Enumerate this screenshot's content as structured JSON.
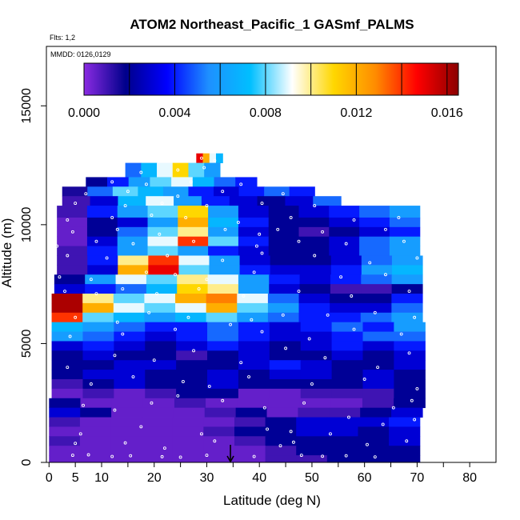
{
  "chart_data": {
    "type": "heatmap",
    "title": "ATOM2 Northeast_Pacific_1 GASmf_PALMS",
    "flights_note": "Flts: 1,2",
    "dates_note": "MMDD: 0126,0129",
    "xlabel": "Latitude (deg N)",
    "ylabel": "Altitude (m)",
    "xlim": [
      -0.5,
      85
    ],
    "ylim": [
      0,
      17500
    ],
    "x_ticks": [
      0,
      5,
      10,
      20,
      30,
      40,
      50,
      60,
      70,
      80
    ],
    "x_tick_labels": [
      "0",
      "5",
      "10",
      "20",
      "30",
      "40",
      "50",
      "60",
      "70",
      "80"
    ],
    "x_minor_ticks": [
      0,
      5,
      10,
      15,
      20,
      25,
      30,
      35,
      40,
      45,
      50,
      55,
      60,
      65,
      70,
      75,
      80
    ],
    "y_ticks": [
      0,
      5000,
      10000,
      15000
    ],
    "y_tick_labels": [
      "0",
      "5000",
      "10000",
      "15000"
    ],
    "colorbar": {
      "range": [
        0,
        0.0165
      ],
      "tick_values": [
        0,
        0.004,
        0.008,
        0.012,
        0.016
      ],
      "tick_labels": [
        "0.000",
        "0.004",
        "0.008",
        "0.012",
        "0.016"
      ],
      "divider_values": [
        0.002,
        0.004,
        0.006,
        0.008,
        0.01,
        0.012,
        0.014,
        0.016
      ],
      "colors": [
        "#8a2be2",
        "#00008b",
        "#0000ff",
        "#1e90ff",
        "#00bfff",
        "#ffffff",
        "#ffd700",
        "#ff8c00",
        "#ff0000",
        "#8b0000"
      ]
    },
    "arrow_marker_latitude": 34.5,
    "layers": [
      {
        "alt": [
          12600,
          13000
        ],
        "lat": [
          28,
          33
        ],
        "values": [
          0.015,
          0.012,
          0.009,
          0.007
        ]
      },
      {
        "alt": [
          12000,
          12600
        ],
        "lat": [
          14.5,
          32.5
        ],
        "values": [
          0.005,
          0.007,
          0.009,
          0.011,
          0.008,
          0.006
        ]
      },
      {
        "alt": [
          11600,
          12000
        ],
        "lat": [
          7,
          39.5
        ],
        "values": [
          0.002,
          0.004,
          0.006,
          0.008,
          0.009,
          0.007,
          0.005,
          0.004
        ]
      },
      {
        "alt": [
          11200,
          11600
        ],
        "lat": [
          2.5,
          50.5
        ],
        "values": [
          0.0015,
          0.005,
          0.008,
          0.007,
          0.006,
          0.004,
          0.003,
          0.004,
          0.005,
          0.004
        ]
      },
      {
        "alt": [
          10800,
          11200
        ],
        "lat": [
          2.5,
          55.5
        ],
        "values": [
          0.001,
          0.003,
          0.007,
          0.009,
          0.006,
          0.004,
          0.003,
          0.002,
          0.003,
          0.005
        ]
      },
      {
        "alt": [
          10300,
          10800
        ],
        "lat": [
          1.5,
          70.5
        ],
        "values": [
          0.001,
          0.004,
          0.006,
          0.008,
          0.011,
          0.006,
          0.003,
          0.002,
          0.003,
          0.004,
          0.005,
          0.006
        ]
      },
      {
        "alt": [
          9900,
          10300
        ],
        "lat": [
          1.5,
          70.5
        ],
        "values": [
          0.0005,
          0.002,
          0.003,
          0.006,
          0.012,
          0.007,
          0.004,
          0.002,
          0.002,
          0.003,
          0.004,
          0.005
        ]
      },
      {
        "alt": [
          9500,
          9900
        ],
        "lat": [
          1.5,
          70.5
        ],
        "values": [
          0.0005,
          0.002,
          0.005,
          0.008,
          0.01,
          0.006,
          0.003,
          0.002,
          0.001,
          0.002,
          0.003,
          0.004
        ]
      },
      {
        "alt": [
          9100,
          9500
        ],
        "lat": [
          1.5,
          70.5
        ],
        "values": [
          0.0005,
          0.003,
          0.006,
          0.009,
          0.014,
          0.008,
          0.004,
          0.002,
          0.002,
          0.003,
          0.005,
          0.006
        ]
      },
      {
        "alt": [
          8700,
          9100
        ],
        "lat": [
          1.5,
          70.5
        ],
        "values": [
          0.001,
          0.004,
          0.006,
          0.008,
          0.006,
          0.004,
          0.003,
          0.002,
          0.002,
          0.003,
          0.005,
          0.006
        ]
      },
      {
        "alt": [
          8300,
          8700
        ],
        "lat": [
          1.5,
          71
        ],
        "values": [
          0.001,
          0.004,
          0.01,
          0.014,
          0.009,
          0.006,
          0.003,
          0.002,
          0.002,
          0.003,
          0.005,
          0.006
        ]
      },
      {
        "alt": [
          7900,
          8300
        ],
        "lat": [
          1.5,
          71
        ],
        "values": [
          0.001,
          0.003,
          0.012,
          0.015,
          0.008,
          0.006,
          0.004,
          0.003,
          0.003,
          0.004,
          0.006,
          0.007
        ]
      },
      {
        "alt": [
          7500,
          7900
        ],
        "lat": [
          1,
          71
        ],
        "values": [
          0.002,
          0.006,
          0.009,
          0.008,
          0.01,
          0.009,
          0.006,
          0.004,
          0.003,
          0.004,
          0.005,
          0.006
        ]
      },
      {
        "alt": [
          7100,
          7500
        ],
        "lat": [
          1,
          71
        ],
        "values": [
          0.003,
          0.004,
          0.005,
          0.007,
          0.011,
          0.01,
          0.006,
          0.003,
          0.002,
          0.001,
          0.001,
          0.002
        ]
      },
      {
        "alt": [
          6700,
          7100
        ],
        "lat": [
          0.5,
          71
        ],
        "values": [
          0.016,
          0.01,
          0.008,
          0.009,
          0.012,
          0.013,
          0.009,
          0.005,
          0.003,
          0.002,
          0.002,
          0.004
        ]
      },
      {
        "alt": [
          6300,
          6700
        ],
        "lat": [
          0.5,
          71
        ],
        "values": [
          0.016,
          0.012,
          0.009,
          0.008,
          0.009,
          0.012,
          0.008,
          0.006,
          0.004,
          0.003,
          0.003,
          0.005
        ]
      },
      {
        "alt": [
          5900,
          6300
        ],
        "lat": [
          0.5,
          71
        ],
        "values": [
          0.014,
          0.008,
          0.007,
          0.006,
          0.007,
          0.008,
          0.006,
          0.005,
          0.004,
          0.004,
          0.005,
          0.006
        ]
      },
      {
        "alt": [
          5500,
          5900
        ],
        "lat": [
          0.5,
          71.5
        ],
        "values": [
          0.007,
          0.006,
          0.005,
          0.004,
          0.004,
          0.005,
          0.004,
          0.003,
          0.004,
          0.005,
          0.004,
          0.006
        ]
      },
      {
        "alt": [
          5100,
          5500
        ],
        "lat": [
          0.5,
          71.5
        ],
        "values": [
          0.006,
          0.005,
          0.004,
          0.003,
          0.004,
          0.005,
          0.004,
          0.003,
          0.003,
          0.004,
          0.005,
          0.005
        ]
      },
      {
        "alt": [
          4700,
          5100
        ],
        "lat": [
          0.5,
          71.5
        ],
        "values": [
          0.003,
          0.004,
          0.003,
          0.002,
          0.003,
          0.004,
          0.003,
          0.002,
          0.003,
          0.004,
          0.003,
          0.004
        ]
      },
      {
        "alt": [
          4300,
          4700
        ],
        "lat": [
          0.5,
          71.5
        ],
        "values": [
          0.002,
          0.003,
          0.002,
          0.002,
          0.001,
          0.002,
          0.003,
          0.002,
          0.002,
          0.003,
          0.002,
          0.003
        ]
      },
      {
        "alt": [
          3900,
          4300
        ],
        "lat": [
          0.5,
          71.5
        ],
        "values": [
          0.002,
          0.002,
          0.003,
          0.003,
          0.002,
          0.002,
          0.003,
          0.004,
          0.003,
          0.002,
          0.002,
          0.003
        ]
      },
      {
        "alt": [
          3500,
          3900
        ],
        "lat": [
          0.5,
          71.5
        ],
        "values": [
          0.002,
          0.003,
          0.003,
          0.002,
          0.002,
          0.003,
          0.002,
          0.003,
          0.003,
          0.002,
          0.003,
          0.002
        ]
      },
      {
        "alt": [
          3100,
          3500
        ],
        "lat": [
          0.5,
          71.5
        ],
        "values": [
          0.001,
          0.002,
          0.003,
          0.002,
          0.002,
          0.003,
          0.002,
          0.002,
          0.002,
          0.002,
          0.003,
          0.002
        ]
      },
      {
        "alt": [
          2700,
          3100
        ],
        "lat": [
          0.5,
          71.5
        ],
        "values": [
          0.0005,
          0.001,
          0.0005,
          0.001,
          0.002,
          0.002,
          0.0005,
          0.0005,
          0.001,
          0.001,
          0.001,
          0.002
        ]
      },
      {
        "alt": [
          2300,
          2700
        ],
        "lat": [
          0,
          71.5
        ],
        "values": [
          0.002,
          0.0005,
          0.0005,
          0.0005,
          0.001,
          0.0005,
          0.0005,
          0.0005,
          0.0005,
          0.0005,
          0.001,
          0.002
        ]
      },
      {
        "alt": [
          1900,
          2300
        ],
        "lat": [
          0,
          71
        ],
        "values": [
          0.003,
          0.002,
          0.0005,
          0.0005,
          0.0005,
          0.001,
          0.002,
          0.0005,
          0.001,
          0.001,
          0.002,
          0.003
        ]
      },
      {
        "alt": [
          1500,
          1900
        ],
        "lat": [
          0,
          70.5
        ],
        "values": [
          0.001,
          0.0005,
          0.0005,
          0.0005,
          0.0005,
          0.0005,
          0.001,
          0.002,
          0.003,
          0.003,
          0.003,
          0.004
        ]
      },
      {
        "alt": [
          1100,
          1500
        ],
        "lat": [
          0,
          70.5
        ],
        "values": [
          0.0005,
          0.0005,
          0.0005,
          0.0005,
          0.0005,
          0.001,
          0.002,
          0.002,
          0.003,
          0.003,
          0.002,
          0.003
        ]
      },
      {
        "alt": [
          700,
          1100
        ],
        "lat": [
          0,
          70.5
        ],
        "values": [
          0.001,
          0.0005,
          0.0005,
          0.0005,
          0.0005,
          0.0005,
          0.001,
          0.002,
          0.002,
          0.002,
          0.002,
          0.003
        ]
      },
      {
        "alt": [
          300,
          700
        ],
        "lat": [
          0,
          70.5
        ],
        "values": [
          0.0005,
          0.0005,
          0.0005,
          0.0005,
          0.0005,
          0.0005,
          0.0005,
          0.001,
          0.002,
          0.002,
          0.002,
          0.002
        ]
      },
      {
        "alt": [
          0,
          300
        ],
        "lat": [
          0,
          70.5
        ],
        "values": [
          0.0005,
          0.0005,
          0.0005,
          0.0005,
          0.0005,
          0.0005,
          0.0005,
          0.001,
          0.001,
          0.002,
          0.002,
          0.002
        ]
      }
    ],
    "sample_points": [
      [
        4.5,
        300
      ],
      [
        7.5,
        320
      ],
      [
        12,
        250
      ],
      [
        15.5,
        280
      ],
      [
        21.5,
        240
      ],
      [
        25,
        220
      ],
      [
        30,
        300
      ],
      [
        39,
        250
      ],
      [
        48,
        300
      ],
      [
        52,
        260
      ],
      [
        56.5,
        280
      ],
      [
        62,
        230
      ],
      [
        5,
        800
      ],
      [
        14.5,
        820
      ],
      [
        22,
        600
      ],
      [
        31.5,
        900
      ],
      [
        44,
        700
      ],
      [
        46.5,
        850
      ],
      [
        60.5,
        750
      ],
      [
        68,
        900
      ],
      [
        6,
        1200
      ],
      [
        17.5,
        1500
      ],
      [
        29,
        1200
      ],
      [
        41.5,
        1400
      ],
      [
        46,
        1300
      ],
      [
        53.5,
        1200
      ],
      [
        63.5,
        1600
      ],
      [
        69.5,
        1800
      ],
      [
        6.5,
        2400
      ],
      [
        12.5,
        2200
      ],
      [
        19.5,
        2500
      ],
      [
        24.5,
        2800
      ],
      [
        33,
        2600
      ],
      [
        41,
        2300
      ],
      [
        48.5,
        2500
      ],
      [
        57,
        1900
      ],
      [
        65.5,
        2300
      ],
      [
        69,
        2600
      ],
      [
        8,
        3300
      ],
      [
        16,
        3600
      ],
      [
        25.5,
        3400
      ],
      [
        30.5,
        3200
      ],
      [
        38,
        3600
      ],
      [
        50,
        3300
      ],
      [
        60,
        3500
      ],
      [
        70,
        3100
      ],
      [
        3.5,
        4000
      ],
      [
        12.5,
        4500
      ],
      [
        20,
        4300
      ],
      [
        27.5,
        4700
      ],
      [
        36.5,
        4200
      ],
      [
        45,
        4800
      ],
      [
        52.5,
        4400
      ],
      [
        62.5,
        4000
      ],
      [
        68.5,
        4600
      ],
      [
        4,
        5300
      ],
      [
        14,
        5400
      ],
      [
        24,
        5600
      ],
      [
        34.5,
        5800
      ],
      [
        40.5,
        5500
      ],
      [
        49.5,
        5200
      ],
      [
        58,
        5600
      ],
      [
        67,
        5400
      ],
      [
        5,
        6100
      ],
      [
        13,
        5900
      ],
      [
        19,
        6300
      ],
      [
        26.5,
        6100
      ],
      [
        38.5,
        6000
      ],
      [
        44.5,
        6200
      ],
      [
        53,
        6200
      ],
      [
        62,
        6300
      ],
      [
        69.5,
        6100
      ],
      [
        3,
        7200
      ],
      [
        9,
        7100
      ],
      [
        14,
        7300
      ],
      [
        20.5,
        7100
      ],
      [
        28.5,
        7300
      ],
      [
        37,
        7000
      ],
      [
        47.5,
        7200
      ],
      [
        57.5,
        7000
      ],
      [
        68.5,
        7200
      ],
      [
        2,
        7800
      ],
      [
        8,
        7700
      ],
      [
        18.5,
        8000
      ],
      [
        24,
        7900
      ],
      [
        30,
        7700
      ],
      [
        39,
        8000
      ],
      [
        55.5,
        7800
      ],
      [
        64,
        7900
      ],
      [
        3.5,
        8700
      ],
      [
        11,
        8600
      ],
      [
        22.5,
        8700
      ],
      [
        33,
        8500
      ],
      [
        40.5,
        8800
      ],
      [
        50.5,
        8700
      ],
      [
        61,
        8400
      ],
      [
        70,
        8600
      ],
      [
        1.5,
        9100
      ],
      [
        9,
        9300
      ],
      [
        16,
        9200
      ],
      [
        27.5,
        9300
      ],
      [
        39.5,
        9100
      ],
      [
        47.5,
        9300
      ],
      [
        56.5,
        9200
      ],
      [
        67.5,
        9300
      ],
      [
        4.5,
        9700
      ],
      [
        13,
        9800
      ],
      [
        21,
        9600
      ],
      [
        33.5,
        9800
      ],
      [
        40,
        9600
      ],
      [
        43.5,
        9800
      ],
      [
        52,
        9700
      ],
      [
        64,
        9800
      ],
      [
        3.5,
        10200
      ],
      [
        12,
        10300
      ],
      [
        19.5,
        10400
      ],
      [
        26,
        10300
      ],
      [
        36,
        10100
      ],
      [
        46,
        10300
      ],
      [
        58,
        10200
      ],
      [
        66.5,
        10300
      ],
      [
        5,
        10900
      ],
      [
        14.5,
        10800
      ],
      [
        21.5,
        10900
      ],
      [
        30,
        10800
      ],
      [
        40.5,
        10900
      ],
      [
        50.5,
        10800
      ],
      [
        7,
        11300
      ],
      [
        15,
        11400
      ],
      [
        24.5,
        11200
      ],
      [
        33,
        11400
      ],
      [
        44.5,
        11300
      ],
      [
        12,
        11800
      ],
      [
        18.5,
        11700
      ],
      [
        27,
        11800
      ],
      [
        36.5,
        11700
      ],
      [
        17.5,
        12200
      ],
      [
        24.5,
        12300
      ],
      [
        29.5,
        12400
      ],
      [
        29,
        12800
      ],
      [
        31.5,
        12700
      ]
    ]
  }
}
